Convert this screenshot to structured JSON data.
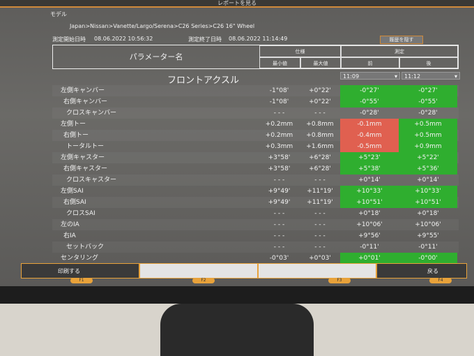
{
  "window": {
    "title": "レポートを見る"
  },
  "model": {
    "label": "モデル",
    "path": "Japan>Nissan>Vanette/Largo/Serena>C26 Series>C26 16\" Wheel"
  },
  "times": {
    "start_label": "測定開始日時",
    "start": "08.06.2022 10:56:32",
    "end_label": "測定終了日時",
    "end": "08.06.2022 11:14:49"
  },
  "hide_history": "履歴を隠す",
  "header": {
    "param": "パラメーター名",
    "spec": "仕様",
    "measure": "測定",
    "min": "最小値",
    "max": "最大値",
    "front": "前",
    "rear": "後"
  },
  "axle": "フロントアクスル",
  "time_selects": {
    "before": "11:09",
    "after": "11:12"
  },
  "colors": {
    "ok": "#2fae2f",
    "out": "#e06050",
    "accent": "#e8a23a"
  },
  "rows": [
    {
      "name": "左側キャンバー",
      "min": "-1°08'",
      "max": "+0°22'",
      "before": "-0°27'",
      "after": "-0°27'",
      "bs": "green",
      "as": "green"
    },
    {
      "name": "右側キャンバー",
      "min": "-1°08'",
      "max": "+0°22'",
      "before": "-0°55'",
      "after": "-0°55'",
      "bs": "green",
      "as": "green"
    },
    {
      "name": "クロスキャンバー",
      "min": "- - -",
      "max": "- - -",
      "before": "-0°28'",
      "after": "-0°28'",
      "bs": "",
      "as": ""
    },
    {
      "name": "左側トー",
      "min": "+0.2mm",
      "max": "+0.8mm",
      "before": "-0.1mm",
      "after": "+0.5mm",
      "bs": "red",
      "as": "green"
    },
    {
      "name": "右側トー",
      "min": "+0.2mm",
      "max": "+0.8mm",
      "before": "-0.4mm",
      "after": "+0.5mm",
      "bs": "red",
      "as": "green"
    },
    {
      "name": "トータルトー",
      "min": "+0.3mm",
      "max": "+1.6mm",
      "before": "-0.5mm",
      "after": "+0.9mm",
      "bs": "red",
      "as": "green"
    },
    {
      "name": "左側キャスター",
      "min": "+3°58'",
      "max": "+6°28'",
      "before": "+5°23'",
      "after": "+5°22'",
      "bs": "green",
      "as": "green"
    },
    {
      "name": "右側キャスター",
      "min": "+3°58'",
      "max": "+6°28'",
      "before": "+5°38'",
      "after": "+5°36'",
      "bs": "green",
      "as": "green"
    },
    {
      "name": "クロスキャスター",
      "min": "- - -",
      "max": "- - -",
      "before": "+0°14'",
      "after": "+0°14'",
      "bs": "",
      "as": ""
    },
    {
      "name": "左側SAI",
      "min": "+9°49'",
      "max": "+11°19'",
      "before": "+10°33'",
      "after": "+10°33'",
      "bs": "green",
      "as": "green"
    },
    {
      "name": "右側SAI",
      "min": "+9°49'",
      "max": "+11°19'",
      "before": "+10°51'",
      "after": "+10°51'",
      "bs": "green",
      "as": "green"
    },
    {
      "name": "クロスSAI",
      "min": "- - -",
      "max": "- - -",
      "before": "+0°18'",
      "after": "+0°18'",
      "bs": "",
      "as": ""
    },
    {
      "name": "左のIA",
      "min": "- - -",
      "max": "- - -",
      "before": "+10°06'",
      "after": "+10°06'",
      "bs": "",
      "as": ""
    },
    {
      "name": "右IA",
      "min": "- - -",
      "max": "- - -",
      "before": "+9°56'",
      "after": "+9°55'",
      "bs": "",
      "as": ""
    },
    {
      "name": "セットバック",
      "min": "- - -",
      "max": "- - -",
      "before": "-0°11'",
      "after": "-0°11'",
      "bs": "",
      "as": ""
    },
    {
      "name": "センタリング",
      "min": "-0°03'",
      "max": "+0°03'",
      "before": "+0°01'",
      "after": "-0°00'",
      "bs": "green",
      "as": "green"
    }
  ],
  "fkeys": [
    {
      "label": "印刷する",
      "key": "F1"
    },
    {
      "label": "",
      "key": "F2"
    },
    {
      "label": "",
      "key": "F3"
    },
    {
      "label": "戻る",
      "key": "F4"
    }
  ]
}
